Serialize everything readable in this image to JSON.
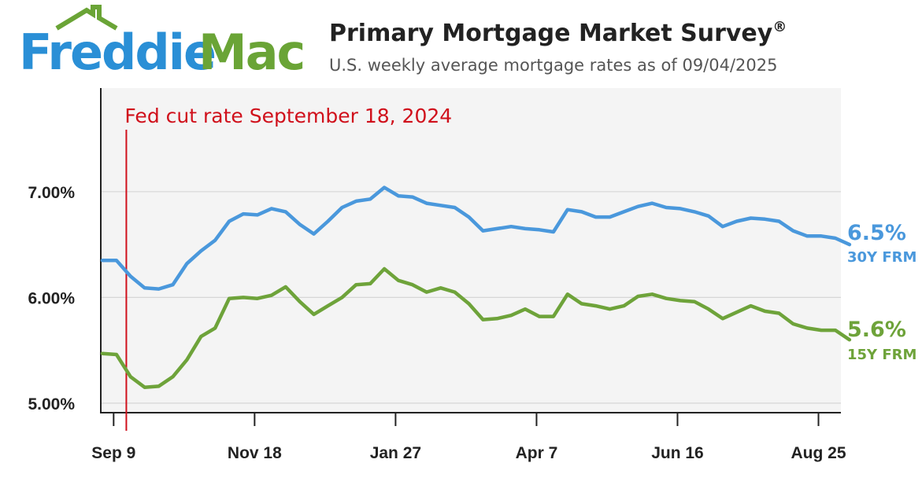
{
  "brand": {
    "logo_part1": "Freddie",
    "logo_part2": "Mac",
    "logo_blue": "#2a8fd6",
    "logo_green": "#6aa436"
  },
  "header": {
    "title": "Primary Mortgage Market Survey",
    "title_mark": "®",
    "subtitle": "U.S. weekly average mortgage rates as of 09/04/2025"
  },
  "colors": {
    "series_30y": "#4a98dc",
    "series_15y": "#6ea33a",
    "annotation": "#d0101b",
    "plot_bg": "#f4f4f4",
    "grid": "#d6d6d6",
    "axis": "#222222"
  },
  "chart_data": {
    "type": "line",
    "title": "Primary Mortgage Market Survey",
    "subtitle": "U.S. weekly average mortgage rates as of 09/04/2025",
    "x_tick_labels": [
      "Sep 9",
      "Nov 18",
      "Jan 27",
      "Apr 7",
      "Jun 16",
      "Aug 25"
    ],
    "y_tick_labels": [
      "7.00%",
      "6.00%",
      "5.00%"
    ],
    "ylim": [
      4.91,
      7.98
    ],
    "x_start_week": 0,
    "x_end_week": 52,
    "grid": true,
    "annotation": {
      "label": "Fed cut rate September 18, 2024",
      "week": 1.7
    },
    "series": [
      {
        "name": "30Y FRM",
        "end_value_label": "6.5%",
        "values": [
          6.35,
          6.35,
          6.2,
          6.09,
          6.08,
          6.12,
          6.32,
          6.44,
          6.54,
          6.72,
          6.79,
          6.78,
          6.84,
          6.81,
          6.69,
          6.6,
          6.72,
          6.85,
          6.91,
          6.93,
          7.04,
          6.96,
          6.95,
          6.89,
          6.87,
          6.85,
          6.76,
          6.63,
          6.65,
          6.67,
          6.65,
          6.64,
          6.62,
          6.83,
          6.81,
          6.76,
          6.76,
          6.81,
          6.86,
          6.89,
          6.85,
          6.84,
          6.81,
          6.77,
          6.67,
          6.72,
          6.75,
          6.74,
          6.72,
          6.63,
          6.58,
          6.58,
          6.56,
          6.5
        ]
      },
      {
        "name": "15Y FRM",
        "end_value_label": "5.6%",
        "values": [
          5.47,
          5.46,
          5.25,
          5.15,
          5.16,
          5.25,
          5.41,
          5.63,
          5.71,
          5.99,
          6.0,
          5.99,
          6.02,
          6.1,
          5.96,
          5.84,
          5.92,
          6.0,
          6.12,
          6.13,
          6.27,
          6.16,
          6.12,
          6.05,
          6.09,
          6.05,
          5.94,
          5.79,
          5.8,
          5.83,
          5.89,
          5.82,
          5.82,
          6.03,
          5.94,
          5.92,
          5.89,
          5.92,
          6.01,
          6.03,
          5.99,
          5.97,
          5.96,
          5.89,
          5.8,
          5.86,
          5.92,
          5.87,
          5.85,
          5.75,
          5.71,
          5.69,
          5.69,
          5.6
        ]
      }
    ]
  }
}
